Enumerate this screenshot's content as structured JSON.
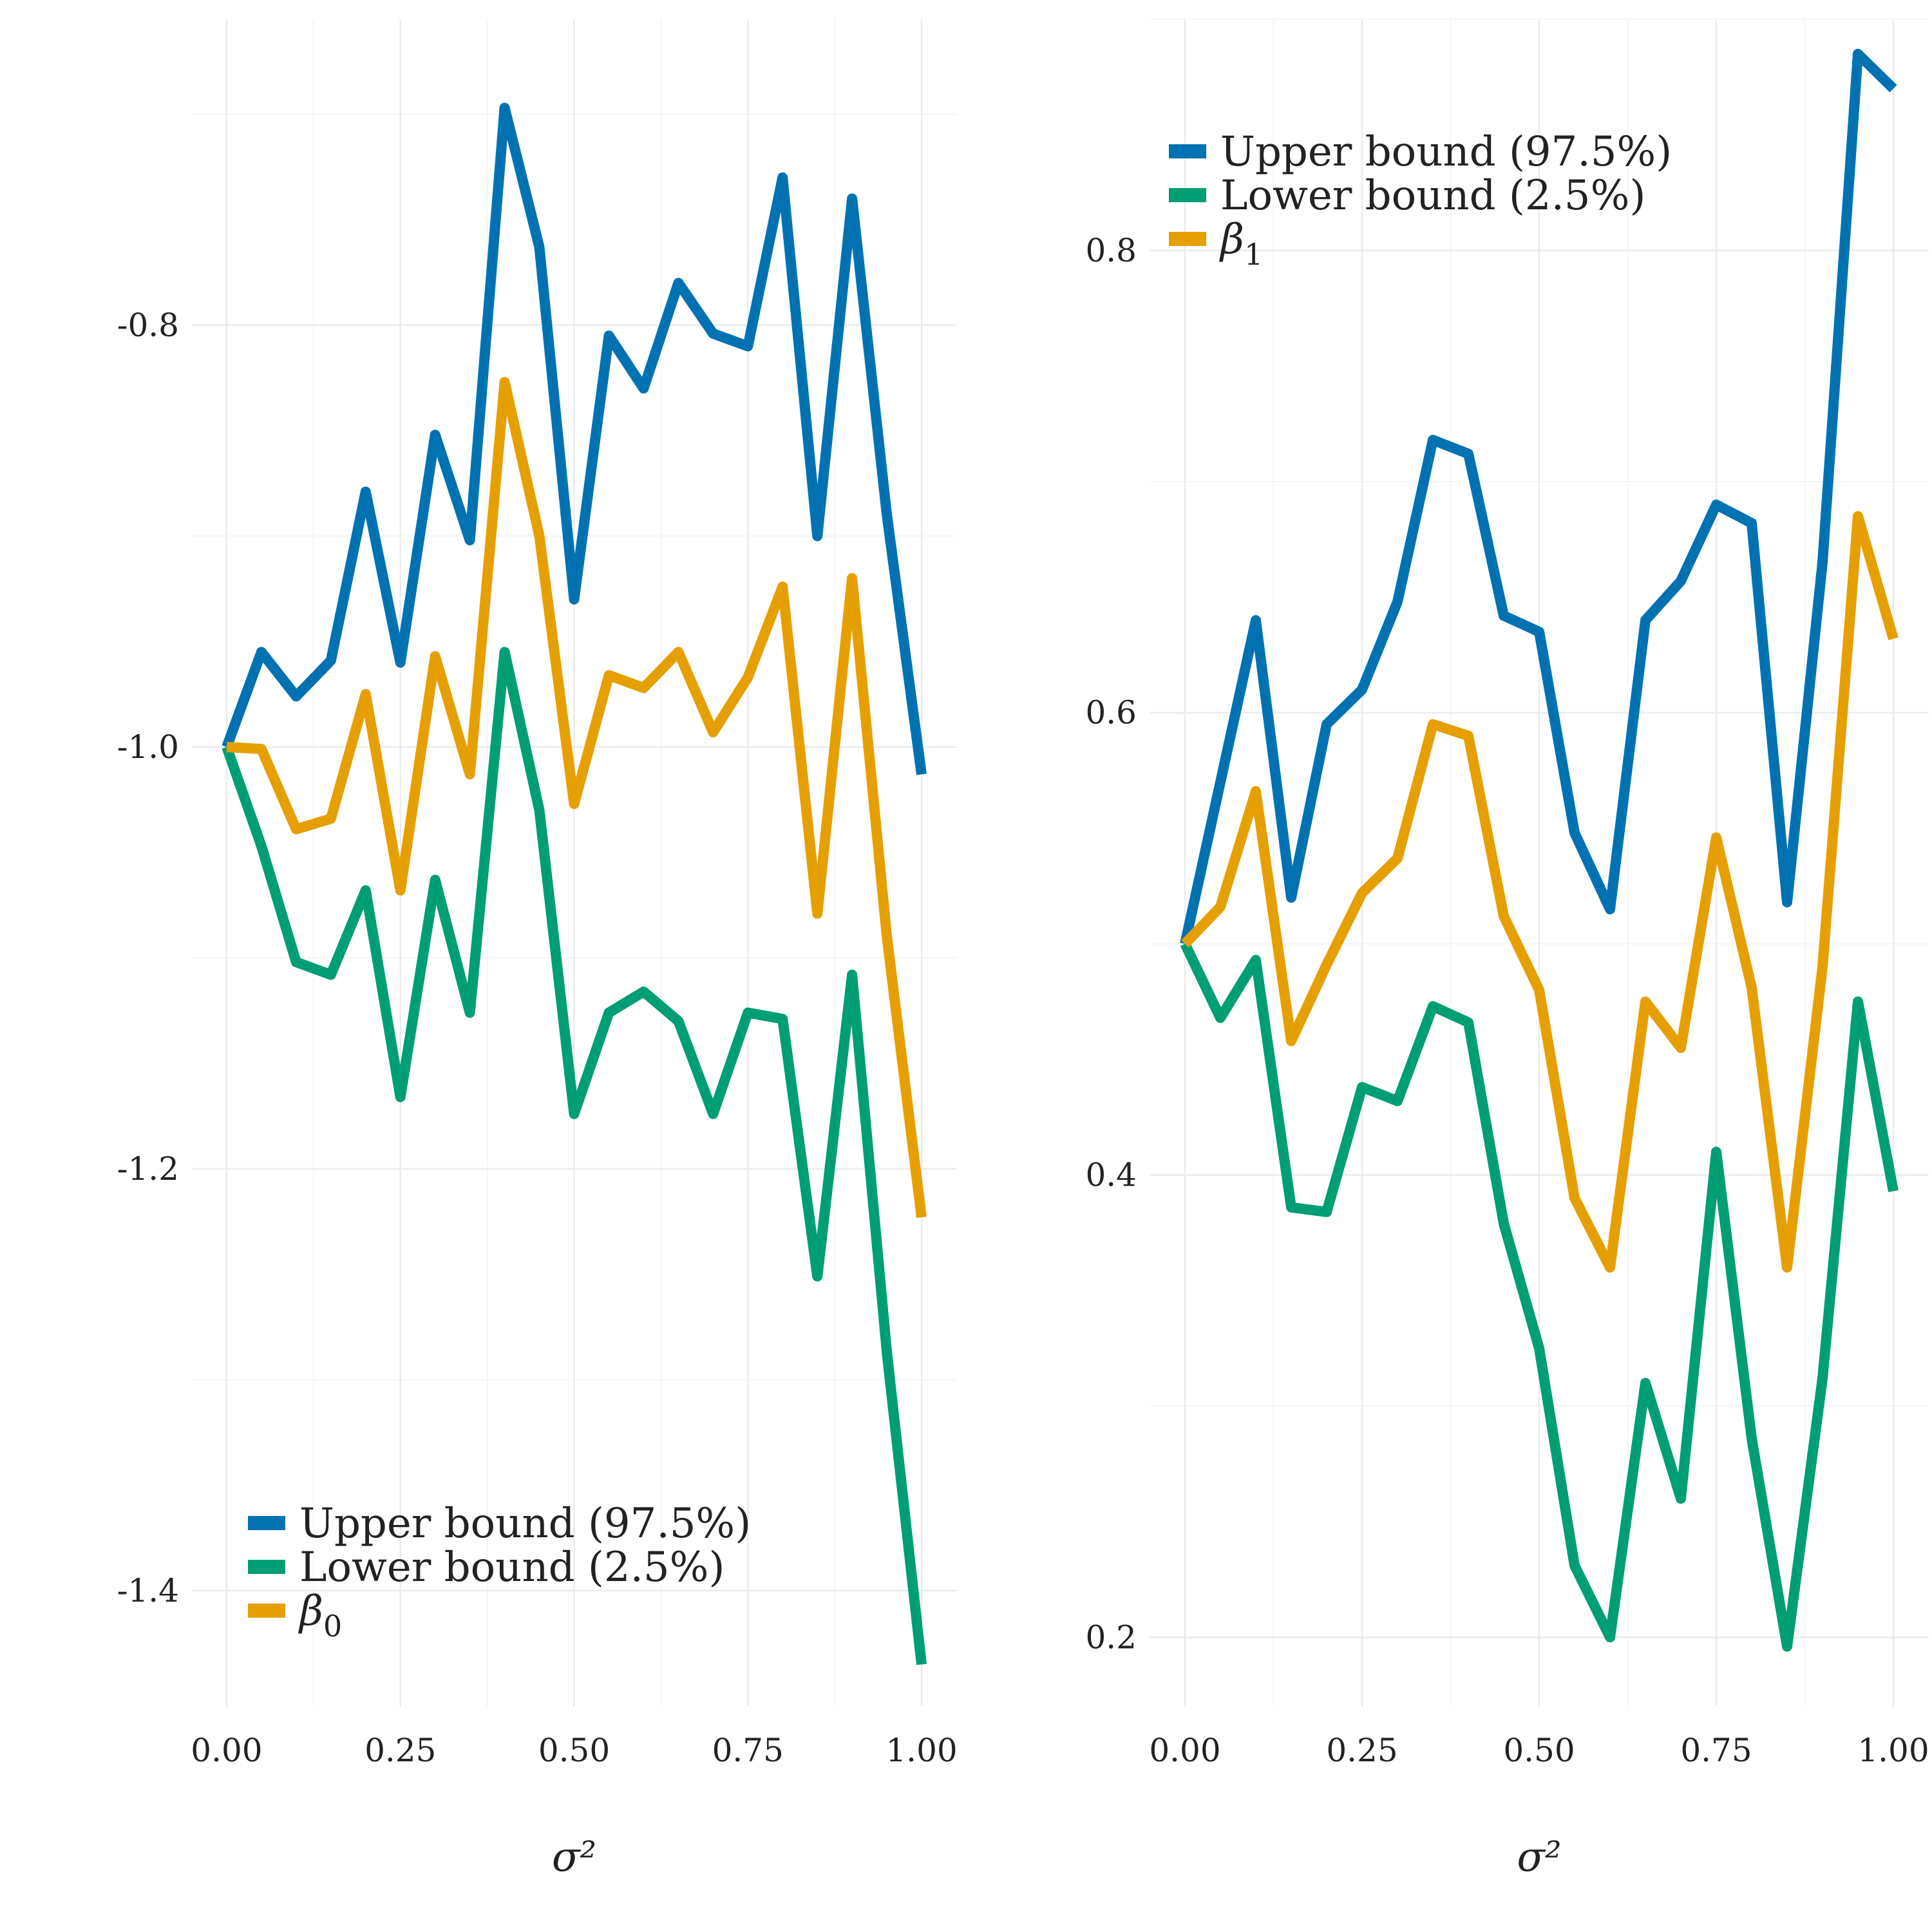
{
  "chart_data": [
    {
      "type": "line",
      "xlabel": "σ²",
      "ylabel": "",
      "xlim": [
        -0.05,
        1.05
      ],
      "ylim": [
        -1.455,
        -0.655
      ],
      "x_ticks": [
        "0.00",
        "0.25",
        "0.50",
        "0.75",
        "1.00"
      ],
      "y_ticks": [
        "-0.8",
        "-1.0",
        "-1.2",
        "-1.4"
      ],
      "x": [
        0,
        0.05,
        0.1,
        0.15,
        0.2,
        0.25,
        0.3,
        0.35,
        0.4,
        0.45,
        0.5,
        0.55,
        0.6,
        0.65,
        0.7,
        0.75,
        0.8,
        0.85,
        0.9,
        0.95,
        1.0
      ],
      "legend_position": "bottom-left",
      "grid": true,
      "series": [
        {
          "name": "Upper bound (97.5%)",
          "color": "#0072B2",
          "values": [
            -1.0,
            -0.955,
            -0.976,
            -0.959,
            -0.879,
            -0.96,
            -0.852,
            -0.902,
            -0.697,
            -0.763,
            -0.93,
            -0.805,
            -0.83,
            -0.78,
            -0.804,
            -0.81,
            -0.73,
            -0.9,
            -0.74,
            -0.89,
            -1.013
          ]
        },
        {
          "name": "Lower bound (2.5%)",
          "color": "#009E73",
          "values": [
            -1.0,
            -1.047,
            -1.102,
            -1.108,
            -1.068,
            -1.166,
            -1.063,
            -1.126,
            -0.955,
            -1.03,
            -1.174,
            -1.126,
            -1.116,
            -1.13,
            -1.174,
            -1.126,
            -1.129,
            -1.251,
            -1.108,
            -1.287,
            -1.435
          ]
        },
        {
          "name": "β₀",
          "color": "#E69F00",
          "values": [
            -1.0,
            -1.001,
            -1.039,
            -1.034,
            -0.975,
            -1.068,
            -0.957,
            -1.013,
            -0.827,
            -0.9,
            -1.027,
            -0.966,
            -0.972,
            -0.955,
            -0.993,
            -0.967,
            -0.924,
            -1.079,
            -0.92,
            -1.09,
            -1.223
          ]
        }
      ]
    },
    {
      "type": "line",
      "xlabel": "σ²",
      "ylabel": "",
      "xlim": [
        -0.05,
        1.05
      ],
      "ylim": [
        0.17,
        0.9
      ],
      "x_ticks": [
        "0.00",
        "0.25",
        "0.50",
        "0.75",
        "1.00"
      ],
      "y_ticks": [
        "0.8",
        "0.6",
        "0.4",
        "0.2"
      ],
      "x": [
        0,
        0.05,
        0.1,
        0.15,
        0.2,
        0.25,
        0.3,
        0.35,
        0.4,
        0.45,
        0.5,
        0.55,
        0.6,
        0.65,
        0.7,
        0.75,
        0.8,
        0.85,
        0.9,
        0.95,
        1.0
      ],
      "legend_position": "top-left",
      "grid": true,
      "series": [
        {
          "name": "Upper bound (97.5%)",
          "color": "#0072B2",
          "values": [
            0.5,
            0.57,
            0.64,
            0.52,
            0.595,
            0.61,
            0.648,
            0.718,
            0.712,
            0.642,
            0.635,
            0.548,
            0.515,
            0.64,
            0.657,
            0.69,
            0.682,
            0.518,
            0.665,
            0.885,
            0.87
          ]
        },
        {
          "name": "Lower bound (2.5%)",
          "color": "#009E73",
          "values": [
            0.5,
            0.468,
            0.493,
            0.386,
            0.384,
            0.438,
            0.432,
            0.473,
            0.466,
            0.379,
            0.325,
            0.231,
            0.2,
            0.31,
            0.26,
            0.41,
            0.286,
            0.196,
            0.312,
            0.475,
            0.393
          ]
        },
        {
          "name": "β₁",
          "color": "#E69F00",
          "values": [
            0.5,
            0.516,
            0.566,
            0.458,
            0.491,
            0.522,
            0.537,
            0.595,
            0.59,
            0.512,
            0.48,
            0.39,
            0.36,
            0.475,
            0.455,
            0.546,
            0.481,
            0.36,
            0.49,
            0.685,
            0.632
          ]
        }
      ]
    }
  ]
}
